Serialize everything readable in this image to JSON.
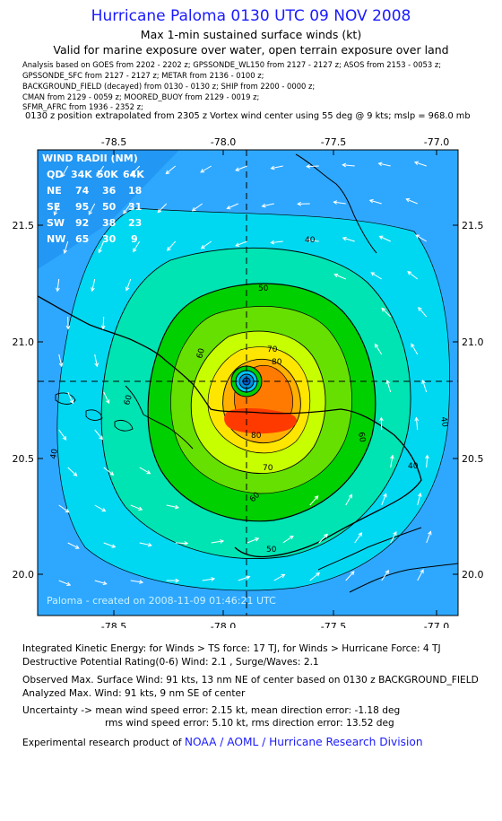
{
  "header": {
    "title": "Hurricane Paloma 0130 UTC 09 NOV 2008",
    "subtitle1": "Max 1-min sustained surface winds (kt)",
    "subtitle2": "Valid for marine exposure over water, open terrain exposure over land",
    "sources": [
      "Analysis based on  GOES from 2202 - 2202 z;  GPSSONDE_WL150 from 2127 - 2127 z;  ASOS from 2153 - 0053 z;",
      "GPSSONDE_SFC from 2127 - 2127 z;  METAR from 2136 - 0100 z;",
      "BACKGROUND_FIELD (decayed) from 0130 - 0130 z;  SHIP from 2200 - 0000 z;",
      "CMAN from 2129 - 0059 z;  MOORED_BUOY from 2129 - 0019 z;",
      "SFMR_AFRC from 1936 - 2352 z;"
    ],
    "position_note": "0130 z position extrapolated from 2305 z Vortex wind center using 55 deg @ 9 kts; mslp = 968.0 mb"
  },
  "map": {
    "lon_labels": [
      "-78.5",
      "-78.0",
      "-77.5",
      "-77.0"
    ],
    "lat_labels": [
      "21.5",
      "21.0",
      "20.5",
      "20.0"
    ],
    "lon_range": [
      -78.95,
      -77.05
    ],
    "lat_range": [
      19.82,
      21.83
    ],
    "center": {
      "lon": -77.92,
      "lat": 20.82
    },
    "contour_labels": [
      "40",
      "40",
      "40",
      "40",
      "50",
      "50",
      "60",
      "60",
      "60",
      "60",
      "70",
      "70",
      "80",
      "80"
    ],
    "watermark": "Paloma  -  created on  2008-11-09 01:46:21 UTC",
    "wind_radii": {
      "title": "WIND RADII (NM)",
      "header": [
        "QD",
        "34K",
        "50K",
        "64K"
      ],
      "rows": [
        [
          "NE",
          "74",
          "36",
          "18"
        ],
        [
          "SE",
          "95",
          "50",
          "31"
        ],
        [
          "SW",
          "92",
          "38",
          "23"
        ],
        [
          "NW",
          "65",
          "30",
          "9"
        ]
      ]
    },
    "colors": {
      "ring_30": "#2ea8ff",
      "ring_40": "#00d8f2",
      "ring_50": "#00e4b4",
      "ring_60": "#00d000",
      "ring_65": "#66e000",
      "ring_70": "#c8ff00",
      "ring_75": "#ffe600",
      "ring_80": "#ffb000",
      "ring_85": "#ff7a00",
      "ring_90": "#ff3a00",
      "eye": "#00c8ff",
      "title_blue": "#1a1aff"
    }
  },
  "footer": {
    "ike": "Integrated Kinetic Energy:  for Winds > TS force: 17 TJ,  for Winds > Hurricane Force: 4 TJ",
    "dpr": "Destructive Potential Rating(0-6)   Wind: 2.1 , Surge/Waves: 2.1",
    "obs_max": "Observed Max. Surface Wind: 91 kts, 13 nm NE of center based on 0130 z BACKGROUND_FIELD",
    "ana_max": "Analyzed Max. Wind: 91 kts, 9 nm SE of center",
    "unc1": "Uncertainty -> mean wind speed error: 2.15 kt,   mean direction error:  -1.18 deg",
    "unc2": "rms wind speed error: 5.10 kt,   rms direction error: 13.52 deg",
    "credit_prefix": "Experimental research product of ",
    "credit_org": "NOAA / AOML / Hurricane Research Division"
  }
}
